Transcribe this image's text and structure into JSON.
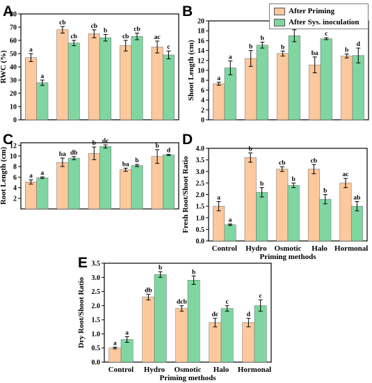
{
  "colors": {
    "after_priming": "#FCC89C",
    "after_inoculation": "#7FD6A1",
    "axis": "#000000",
    "error_bar": "#000000"
  },
  "legend": {
    "items": [
      {
        "label": "After Priming",
        "color": "#FCC89C"
      },
      {
        "label": "After Sys. inoculation",
        "color": "#7FD6A1"
      }
    ]
  },
  "chart_data": [
    {
      "panel": "A",
      "type": "bar",
      "categories": [
        "",
        "",
        "",
        "",
        ""
      ],
      "ylabel": "RWC (%)",
      "xlabel": "",
      "ylim": [
        0,
        80
      ],
      "yticks": [
        0,
        10,
        20,
        30,
        40,
        50,
        60,
        70,
        80
      ],
      "series": [
        {
          "name": "After Priming",
          "values": [
            47,
            68,
            65,
            56,
            55
          ],
          "errors": [
            3,
            2.5,
            3,
            4,
            4.5
          ],
          "letters": [
            "a",
            "cb",
            "cb",
            "cb",
            "ac"
          ]
        },
        {
          "name": "After Sys. inoculation",
          "values": [
            28,
            58,
            62,
            63,
            49
          ],
          "errors": [
            2,
            2,
            2.5,
            2.5,
            3
          ],
          "letters": [
            "a",
            "cb",
            "b",
            "cb",
            "c"
          ]
        }
      ]
    },
    {
      "panel": "B",
      "type": "bar",
      "categories": [
        "",
        "",
        "",
        "",
        ""
      ],
      "ylabel": "Shoot Length (cm)",
      "xlabel": "",
      "ylim": [
        0,
        20
      ],
      "yticks": [
        0,
        2,
        4,
        6,
        8,
        10,
        12,
        14,
        16,
        18,
        20
      ],
      "series": [
        {
          "name": "After Priming",
          "values": [
            7.3,
            12.4,
            13.4,
            11.1,
            12.9
          ],
          "errors": [
            0.3,
            1.6,
            0.5,
            1.6,
            0.4
          ],
          "letters": [
            "a",
            "b",
            "b",
            "ba",
            "b"
          ]
        },
        {
          "name": "After Sys. inoculation",
          "values": [
            10.5,
            15.1,
            17.0,
            16.4,
            13.0
          ],
          "errors": [
            1.4,
            0.6,
            1.2,
            0.2,
            1.5
          ],
          "letters": [
            "a",
            "b",
            "c",
            "c",
            "d"
          ]
        }
      ]
    },
    {
      "panel": "C",
      "type": "bar",
      "categories": [
        "",
        "",
        "",
        "",
        ""
      ],
      "ylabel": "Root Length (cm)",
      "xlabel": "",
      "ylim": [
        0,
        12.5
      ],
      "yticks": [
        2,
        4,
        6,
        8,
        10,
        12
      ],
      "series": [
        {
          "name": "After Priming",
          "values": [
            5.1,
            8.8,
            10.5,
            7.4,
            9.9
          ],
          "errors": [
            0.4,
            0.8,
            1.2,
            0.3,
            1.3
          ],
          "letters": [
            "a",
            "ba",
            "b",
            "ba",
            "b"
          ]
        },
        {
          "name": "After Sys. inoculation",
          "values": [
            5.9,
            9.6,
            11.8,
            8.2,
            10.2
          ],
          "errors": [
            0.15,
            0.3,
            0.3,
            0.2,
            0.1
          ],
          "letters": [
            "a",
            "db",
            "dc",
            "b",
            "d"
          ]
        }
      ]
    },
    {
      "panel": "D",
      "type": "bar",
      "categories": [
        "Control",
        "Hydro",
        "Osmotic",
        "Halo",
        "Hormonal"
      ],
      "ylabel": "Fresh Root/Shoot Ratio",
      "xlabel": "Priming methods",
      "ylim": [
        0,
        4.0
      ],
      "yticks": [
        0.0,
        0.5,
        1.0,
        1.5,
        2.0,
        2.5,
        3.0,
        3.5,
        4.0
      ],
      "ytick_labels": [
        "0.0",
        "0.5",
        "1.0",
        "1.5",
        "2.0",
        "2.5",
        "3.0",
        "3.5",
        "4.0"
      ],
      "series": [
        {
          "name": "After Priming",
          "values": [
            1.5,
            3.6,
            3.1,
            3.1,
            2.5
          ],
          "errors": [
            0.2,
            0.2,
            0.1,
            0.2,
            0.2
          ],
          "letters": [
            "a",
            "b",
            "cb",
            "cb",
            "ac"
          ]
        },
        {
          "name": "After Sys. inoculation",
          "values": [
            0.7,
            2.1,
            2.4,
            1.8,
            1.5
          ],
          "errors": [
            0.03,
            0.2,
            0.1,
            0.2,
            0.2
          ],
          "letters": [
            "a",
            "b",
            "b",
            "b",
            "ab"
          ]
        }
      ]
    },
    {
      "panel": "E",
      "type": "bar",
      "categories": [
        "Control",
        "Hydro",
        "Osmotic",
        "Halo",
        "Hormonal"
      ],
      "ylabel": "Dry Root/Shoot Ratio",
      "xlabel": "Priming methods",
      "ylim": [
        0,
        3.5
      ],
      "yticks": [
        0.0,
        0.5,
        1.0,
        1.5,
        2.0,
        2.5,
        3.0,
        3.5
      ],
      "ytick_labels": [
        "0.0",
        "0.5",
        "1.0",
        "1.5",
        "2.0",
        "2.5",
        "3.0",
        "3.5"
      ],
      "series": [
        {
          "name": "After Priming",
          "values": [
            0.5,
            2.3,
            1.9,
            1.4,
            1.4
          ],
          "errors": [
            0.03,
            0.1,
            0.1,
            0.15,
            0.15
          ],
          "letters": [
            "a",
            "db",
            "dcb",
            "dc",
            "d"
          ]
        },
        {
          "name": "After Sys. inoculation",
          "values": [
            0.8,
            3.1,
            2.9,
            1.9,
            2.0
          ],
          "errors": [
            0.1,
            0.1,
            0.15,
            0.1,
            0.2
          ],
          "letters": [
            "a",
            "b",
            "b",
            "c",
            "c"
          ]
        }
      ]
    }
  ]
}
